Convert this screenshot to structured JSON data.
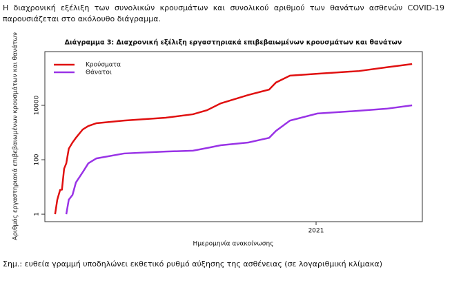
{
  "intro": "Η διαχρονική εξέλιξη των συνολικών κρουσμάτων και συνολικού αριθμού των θανάτων ασθενών COVID-19 παρουσιάζεται στο ακόλουθο διάγραμμα.",
  "chart_data": {
    "type": "line",
    "title": "Διάγραμμα 3: Διαχρονική εξέλιξη εργαστηριακά επιβεβαιωμένων κρουσμάτων και θανάτων",
    "x_label": "Ημερομηνία ανακοίνωσης",
    "y_label": "Αριθμός εργαστηριακά επιβεβαιωμένων κρουσμάτων και θανάτων",
    "x": [
      2020.16,
      2020.167,
      2020.176,
      2020.182,
      2020.189,
      2020.196,
      2020.204,
      2020.216,
      2020.227,
      2020.249,
      2020.267,
      2020.293,
      2020.382,
      2020.516,
      2020.604,
      2020.649,
      2020.693,
      2020.782,
      2020.849,
      2020.871,
      2020.916,
      2021.004,
      2021.138,
      2021.227,
      2021.309
    ],
    "series": [
      {
        "name": "Κρούσματα",
        "color": "#e01010",
        "values": [
          1,
          3.4,
          7.7,
          8,
          47,
          74,
          254,
          430,
          640,
          1300,
          1740,
          2200,
          2750,
          3500,
          4700,
          6600,
          11800,
          24000,
          38000,
          69000,
          123000,
          145000,
          182000,
          250000,
          330000
        ]
      },
      {
        "name": "Θάνατοι",
        "color": "#9933e6",
        "values": [
          null,
          null,
          null,
          null,
          null,
          1,
          3.4,
          5.1,
          14.6,
          35,
          74,
          112,
          170,
          200,
          215,
          270,
          340,
          430,
          640,
          1150,
          2750,
          5000,
          6300,
          7500,
          10000
        ]
      }
    ],
    "log_y": true,
    "legend": "top-left",
    "xlim": [
      2020.127,
      2021.342
    ],
    "xticks": [
      2021
    ],
    "ylim": [
      0.53,
      940000
    ],
    "yticks": [
      1,
      100,
      10000
    ]
  },
  "note": "Σημ.: ευθεία γραμμή υποδηλώνει εκθετικό ρυθμό αύξησης της ασθένειας (σε λογαριθμική κλίμακα)"
}
